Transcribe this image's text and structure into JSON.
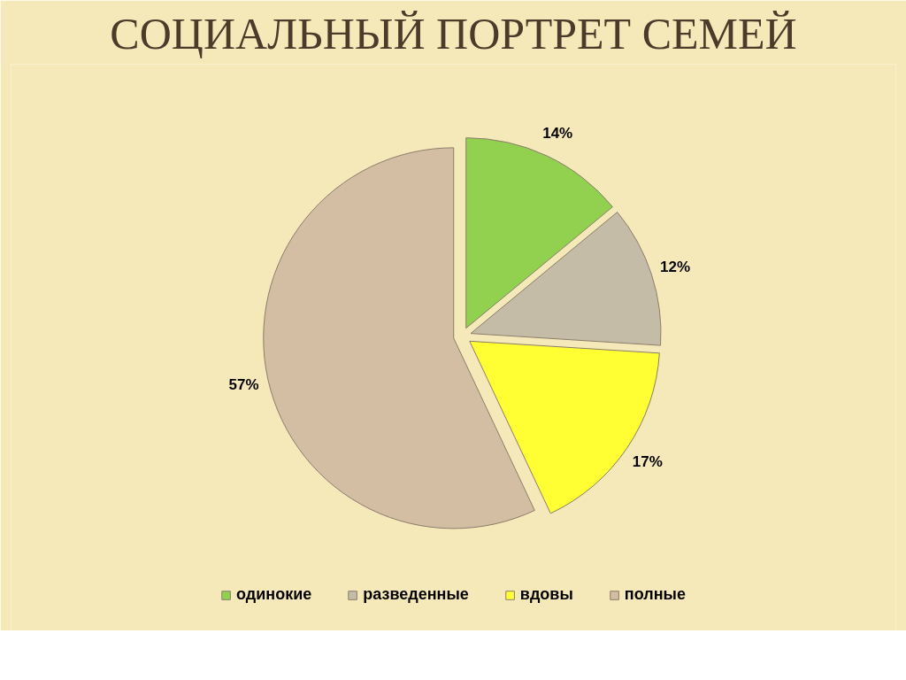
{
  "chart_data": {
    "type": "pie",
    "title": "СОЦИАЛЬНЫЙ ПОРТРЕТ СЕМЕЙ",
    "categories": [
      "одинокие",
      "разведенные",
      "вдовы",
      "полные"
    ],
    "values": [
      14,
      12,
      17,
      57
    ],
    "colors": [
      "#92d050",
      "#c4bca6",
      "#ffff33",
      "#d4bea3"
    ],
    "value_labels": [
      "14%",
      "12%",
      "17%",
      "57%"
    ],
    "legend": "bottom"
  }
}
